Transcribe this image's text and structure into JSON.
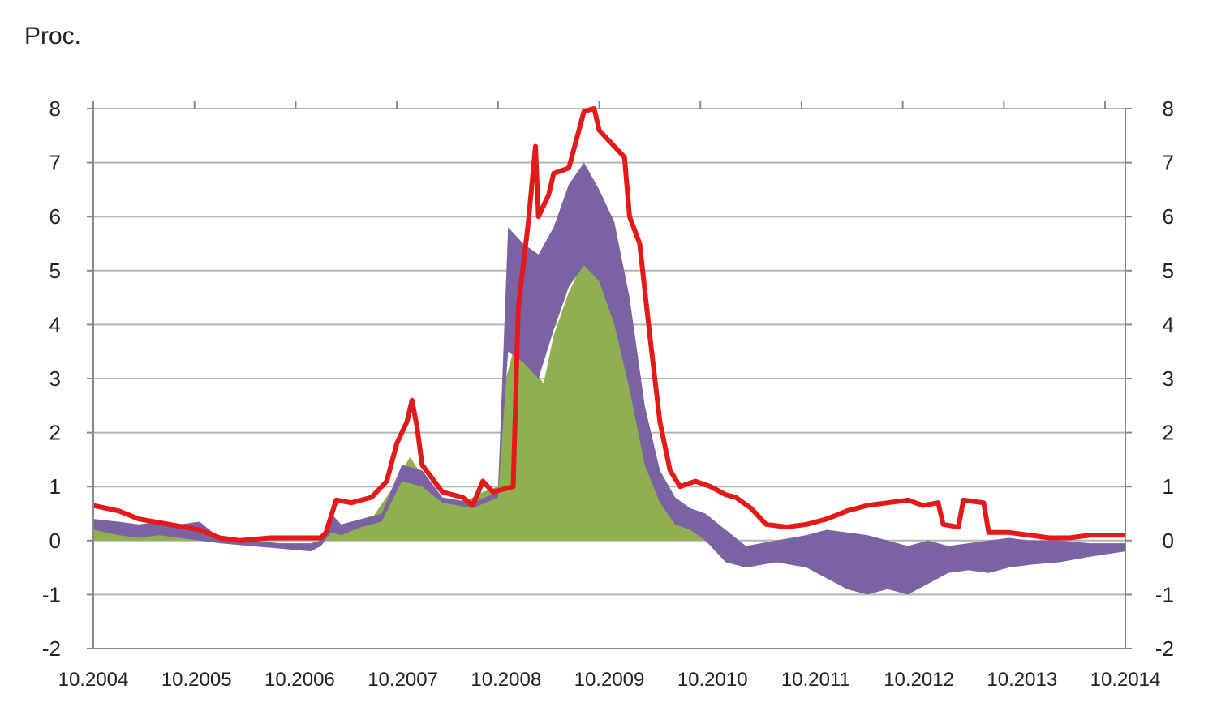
{
  "chart_data": {
    "type": "area",
    "unit_label": "Proc.",
    "x_tick_labels": [
      "10.2004",
      "10.2005",
      "10.2006",
      "10.2007",
      "10.2008",
      "10.2009",
      "10.2010",
      "10.2011",
      "10.2012",
      "10.2013",
      "10.2014"
    ],
    "y_ticks": [
      -2,
      -1,
      0,
      1,
      2,
      3,
      4,
      5,
      6,
      7,
      8
    ],
    "ylim": [
      -2,
      8
    ],
    "xlim": [
      2004.75,
      2014.95
    ],
    "grid": true,
    "right_axis_mirrors_left": true,
    "colors": {
      "green_area": "#8fb050",
      "purple_area": "#7b62a3",
      "red_line": "#e41a1a",
      "grid": "#b4b4b4",
      "axis": "#888888"
    },
    "series": [
      {
        "kind": "area",
        "color": "#8fb050",
        "points": [
          [
            2004.75,
            0.2
          ],
          [
            2005.0,
            0.15
          ],
          [
            2005.5,
            0.1
          ],
          [
            2005.8,
            0.05
          ],
          [
            2006.0,
            0.02
          ],
          [
            2006.5,
            0.0
          ],
          [
            2006.95,
            0.0
          ],
          [
            2007.1,
            0.3
          ],
          [
            2007.3,
            0.2
          ],
          [
            2007.5,
            0.4
          ],
          [
            2007.7,
            0.95
          ],
          [
            2007.88,
            1.55
          ],
          [
            2008.0,
            1.2
          ],
          [
            2008.2,
            0.8
          ],
          [
            2008.4,
            0.7
          ],
          [
            2008.6,
            0.9
          ],
          [
            2008.75,
            1.0
          ],
          [
            2008.8,
            2.8
          ],
          [
            2008.9,
            3.5
          ],
          [
            2009.0,
            3.45
          ],
          [
            2009.1,
            3.2
          ],
          [
            2009.2,
            2.9
          ],
          [
            2009.3,
            3.8
          ],
          [
            2009.45,
            4.6
          ],
          [
            2009.6,
            5.2
          ],
          [
            2009.75,
            5.0
          ],
          [
            2009.9,
            4.2
          ],
          [
            2010.05,
            3.0
          ],
          [
            2010.2,
            1.5
          ],
          [
            2010.35,
            0.8
          ],
          [
            2010.5,
            0.5
          ],
          [
            2010.65,
            0.3
          ],
          [
            2010.8,
            0.1
          ],
          [
            2010.95,
            0.0
          ],
          [
            2011.5,
            0.0
          ],
          [
            2012.0,
            0.0
          ],
          [
            2012.5,
            0.0
          ],
          [
            2013.0,
            0.0
          ],
          [
            2013.5,
            0.0
          ],
          [
            2014.0,
            0.0
          ],
          [
            2014.5,
            0.0
          ],
          [
            2014.95,
            0.0
          ]
        ]
      },
      {
        "kind": "band",
        "color": "#7b62a3",
        "upper": [
          [
            2004.75,
            0.4
          ],
          [
            2005.0,
            0.35
          ],
          [
            2005.2,
            0.3
          ],
          [
            2005.4,
            0.35
          ],
          [
            2005.6,
            0.3
          ],
          [
            2005.8,
            0.35
          ],
          [
            2006.0,
            0.05
          ],
          [
            2006.3,
            0.0
          ],
          [
            2006.6,
            -0.05
          ],
          [
            2006.9,
            -0.05
          ],
          [
            2007.0,
            0.0
          ],
          [
            2007.1,
            0.5
          ],
          [
            2007.2,
            0.3
          ],
          [
            2007.4,
            0.4
          ],
          [
            2007.6,
            0.5
          ],
          [
            2007.8,
            1.4
          ],
          [
            2008.0,
            1.3
          ],
          [
            2008.2,
            0.8
          ],
          [
            2008.5,
            0.7
          ],
          [
            2008.75,
            0.9
          ],
          [
            2008.85,
            5.8
          ],
          [
            2009.0,
            5.5
          ],
          [
            2009.15,
            5.3
          ],
          [
            2009.3,
            5.8
          ],
          [
            2009.45,
            6.6
          ],
          [
            2009.6,
            7.0
          ],
          [
            2009.75,
            6.5
          ],
          [
            2009.9,
            5.9
          ],
          [
            2010.05,
            4.5
          ],
          [
            2010.2,
            2.5
          ],
          [
            2010.35,
            1.3
          ],
          [
            2010.5,
            0.8
          ],
          [
            2010.65,
            0.6
          ],
          [
            2010.8,
            0.5
          ],
          [
            2011.0,
            0.2
          ],
          [
            2011.2,
            -0.1
          ],
          [
            2011.5,
            0.0
          ],
          [
            2011.8,
            0.1
          ],
          [
            2012.0,
            0.2
          ],
          [
            2012.2,
            0.15
          ],
          [
            2012.4,
            0.1
          ],
          [
            2012.6,
            0.0
          ],
          [
            2012.8,
            -0.1
          ],
          [
            2013.0,
            0.0
          ],
          [
            2013.2,
            -0.1
          ],
          [
            2013.4,
            -0.05
          ],
          [
            2013.6,
            0.0
          ],
          [
            2013.8,
            0.05
          ],
          [
            2014.0,
            0.0
          ],
          [
            2014.3,
            0.0
          ],
          [
            2014.6,
            -0.05
          ],
          [
            2014.95,
            -0.05
          ]
        ],
        "lower": [
          [
            2004.75,
            0.2
          ],
          [
            2005.0,
            0.1
          ],
          [
            2005.2,
            0.05
          ],
          [
            2005.4,
            0.1
          ],
          [
            2005.6,
            0.05
          ],
          [
            2005.8,
            0.0
          ],
          [
            2006.0,
            -0.05
          ],
          [
            2006.3,
            -0.1
          ],
          [
            2006.6,
            -0.15
          ],
          [
            2006.9,
            -0.2
          ],
          [
            2007.0,
            -0.1
          ],
          [
            2007.1,
            0.15
          ],
          [
            2007.2,
            0.1
          ],
          [
            2007.4,
            0.25
          ],
          [
            2007.6,
            0.35
          ],
          [
            2007.8,
            1.1
          ],
          [
            2008.0,
            1.0
          ],
          [
            2008.2,
            0.7
          ],
          [
            2008.5,
            0.6
          ],
          [
            2008.75,
            0.8
          ],
          [
            2008.85,
            3.5
          ],
          [
            2009.0,
            3.3
          ],
          [
            2009.15,
            3.0
          ],
          [
            2009.3,
            3.9
          ],
          [
            2009.45,
            4.7
          ],
          [
            2009.6,
            5.1
          ],
          [
            2009.75,
            4.8
          ],
          [
            2009.9,
            4.0
          ],
          [
            2010.05,
            2.8
          ],
          [
            2010.2,
            1.4
          ],
          [
            2010.35,
            0.7
          ],
          [
            2010.5,
            0.3
          ],
          [
            2010.65,
            0.2
          ],
          [
            2010.8,
            0.0
          ],
          [
            2011.0,
            -0.4
          ],
          [
            2011.2,
            -0.5
          ],
          [
            2011.5,
            -0.4
          ],
          [
            2011.8,
            -0.5
          ],
          [
            2012.0,
            -0.7
          ],
          [
            2012.2,
            -0.9
          ],
          [
            2012.4,
            -1.0
          ],
          [
            2012.6,
            -0.9
          ],
          [
            2012.8,
            -1.0
          ],
          [
            2013.0,
            -0.8
          ],
          [
            2013.2,
            -0.6
          ],
          [
            2013.4,
            -0.55
          ],
          [
            2013.6,
            -0.6
          ],
          [
            2013.8,
            -0.5
          ],
          [
            2014.0,
            -0.45
          ],
          [
            2014.3,
            -0.4
          ],
          [
            2014.6,
            -0.3
          ],
          [
            2014.95,
            -0.2
          ]
        ]
      },
      {
        "kind": "line",
        "color": "#e41a1a",
        "points": [
          [
            2004.75,
            0.65
          ],
          [
            2005.0,
            0.55
          ],
          [
            2005.2,
            0.4
          ],
          [
            2005.5,
            0.3
          ],
          [
            2005.8,
            0.2
          ],
          [
            2006.0,
            0.05
          ],
          [
            2006.2,
            0.0
          ],
          [
            2006.5,
            0.05
          ],
          [
            2006.8,
            0.05
          ],
          [
            2007.0,
            0.05
          ],
          [
            2007.05,
            0.15
          ],
          [
            2007.15,
            0.75
          ],
          [
            2007.3,
            0.7
          ],
          [
            2007.5,
            0.8
          ],
          [
            2007.65,
            1.1
          ],
          [
            2007.75,
            1.8
          ],
          [
            2007.85,
            2.2
          ],
          [
            2007.9,
            2.6
          ],
          [
            2007.95,
            2.1
          ],
          [
            2008.0,
            1.4
          ],
          [
            2008.2,
            0.9
          ],
          [
            2008.4,
            0.8
          ],
          [
            2008.5,
            0.65
          ],
          [
            2008.6,
            1.1
          ],
          [
            2008.7,
            0.9
          ],
          [
            2008.8,
            0.95
          ],
          [
            2008.9,
            1.0
          ],
          [
            2008.95,
            4.3
          ],
          [
            2009.05,
            5.9
          ],
          [
            2009.12,
            7.3
          ],
          [
            2009.15,
            6.0
          ],
          [
            2009.25,
            6.4
          ],
          [
            2009.3,
            6.8
          ],
          [
            2009.45,
            6.9
          ],
          [
            2009.6,
            7.95
          ],
          [
            2009.7,
            8.0
          ],
          [
            2009.75,
            7.6
          ],
          [
            2009.9,
            7.3
          ],
          [
            2010.0,
            7.1
          ],
          [
            2010.05,
            6.0
          ],
          [
            2010.15,
            5.5
          ],
          [
            2010.25,
            3.8
          ],
          [
            2010.35,
            2.2
          ],
          [
            2010.45,
            1.3
          ],
          [
            2010.55,
            1.0
          ],
          [
            2010.7,
            1.1
          ],
          [
            2010.85,
            1.0
          ],
          [
            2011.0,
            0.85
          ],
          [
            2011.1,
            0.8
          ],
          [
            2011.25,
            0.6
          ],
          [
            2011.4,
            0.3
          ],
          [
            2011.6,
            0.25
          ],
          [
            2011.8,
            0.3
          ],
          [
            2012.0,
            0.4
          ],
          [
            2012.2,
            0.55
          ],
          [
            2012.4,
            0.65
          ],
          [
            2012.6,
            0.7
          ],
          [
            2012.8,
            0.75
          ],
          [
            2012.95,
            0.65
          ],
          [
            2013.1,
            0.7
          ],
          [
            2013.15,
            0.3
          ],
          [
            2013.3,
            0.25
          ],
          [
            2013.35,
            0.75
          ],
          [
            2013.55,
            0.7
          ],
          [
            2013.6,
            0.15
          ],
          [
            2013.8,
            0.15
          ],
          [
            2014.0,
            0.1
          ],
          [
            2014.2,
            0.05
          ],
          [
            2014.4,
            0.05
          ],
          [
            2014.6,
            0.1
          ],
          [
            2014.8,
            0.1
          ],
          [
            2014.95,
            0.1
          ]
        ]
      }
    ]
  }
}
